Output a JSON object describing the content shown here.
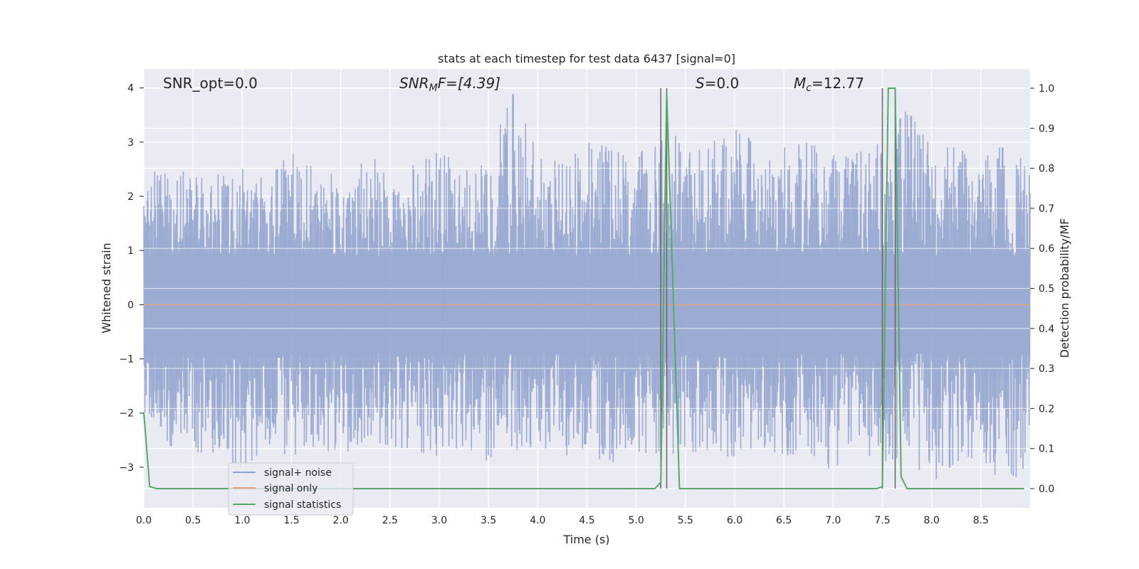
{
  "chart_data": {
    "type": "line",
    "title": "stats at each timestep for test data 6437 [signal=0]",
    "xlabel": "Time (s)",
    "ylabel": "Whitened strain",
    "y2label": "Detection probability/MF",
    "xlim": [
      0.0,
      9.0
    ],
    "ylim": [
      -3.75,
      4.35
    ],
    "y2lim": [
      -0.048,
      1.048
    ],
    "xticks": [
      "0.0",
      "0.5",
      "1.0",
      "1.5",
      "2.0",
      "2.5",
      "3.0",
      "3.5",
      "4.0",
      "4.5",
      "5.0",
      "5.5",
      "6.0",
      "6.5",
      "7.0",
      "7.5",
      "8.0",
      "8.5"
    ],
    "yticks": [
      "4",
      "3",
      "2",
      "1",
      "0",
      "−1",
      "−2",
      "−3"
    ],
    "y2ticks": [
      "1.0",
      "0.9",
      "0.8",
      "0.7",
      "0.6",
      "0.5",
      "0.4",
      "0.3",
      "0.2",
      "0.1",
      "0.0"
    ],
    "grid": true,
    "annotations": {
      "snr_opt": "SNR_opt=0.0",
      "snr_mf_base": "SNR",
      "snr_mf_sub": "M",
      "snr_mf_rest": "F=[4.39]",
      "s_base": "S",
      "s_rest": "=0.0",
      "mc_base": "M",
      "mc_sub": "c",
      "mc_rest": "=12.77"
    },
    "legend": {
      "placement": "lower-left",
      "entries": [
        {
          "label": "signal+ noise",
          "color": "#8da0cb"
        },
        {
          "label": "signal only",
          "color": "#e3a07a"
        },
        {
          "label": "signal statistics",
          "color": "#55a868"
        }
      ]
    },
    "series": [
      {
        "name": "signal+ noise",
        "color": "#8da0cb",
        "axis": "left",
        "envelope_x": [
          0.0,
          0.25,
          0.5,
          0.75,
          1.0,
          1.25,
          1.5,
          1.75,
          2.0,
          2.25,
          2.5,
          2.75,
          3.0,
          3.25,
          3.5,
          3.75,
          4.0,
          4.25,
          4.5,
          4.75,
          5.0,
          5.25,
          5.5,
          5.75,
          6.0,
          6.25,
          6.5,
          6.75,
          7.0,
          7.25,
          7.5,
          7.75,
          8.0,
          8.25,
          8.5,
          8.75,
          9.0
        ],
        "envelope_max": [
          2.5,
          2.4,
          2.5,
          2.5,
          2.5,
          2.4,
          2.8,
          2.5,
          2.4,
          2.8,
          2.5,
          2.6,
          2.9,
          2.6,
          2.8,
          3.9,
          2.8,
          2.6,
          3.0,
          2.9,
          2.6,
          3.6,
          2.8,
          2.9,
          3.6,
          2.7,
          2.9,
          3.0,
          2.9,
          2.8,
          3.0,
          3.6,
          2.9,
          2.9,
          2.9,
          2.9,
          2.6
        ],
        "envelope_min": [
          -2.3,
          -2.6,
          -2.7,
          -2.8,
          -3.0,
          -2.7,
          -2.8,
          -2.6,
          -2.8,
          -2.5,
          -2.6,
          -2.7,
          -2.8,
          -2.6,
          -2.9,
          -2.7,
          -2.6,
          -2.8,
          -2.7,
          -3.0,
          -2.7,
          -2.8,
          -2.7,
          -2.8,
          -2.8,
          -2.6,
          -2.8,
          -2.7,
          -3.1,
          -2.8,
          -2.9,
          -2.8,
          -3.3,
          -2.9,
          -2.8,
          -3.4,
          -2.9
        ]
      },
      {
        "name": "signal only",
        "color": "#e3a07a",
        "axis": "left",
        "x": [
          0.0,
          9.0
        ],
        "y": [
          0.0,
          0.0
        ]
      },
      {
        "name": "signal statistics",
        "color": "#55a868",
        "axis": "right",
        "x": [
          0.0,
          0.06,
          0.13,
          5.19,
          5.25,
          5.31,
          5.44,
          7.44,
          7.5,
          7.56,
          7.63,
          7.69,
          7.75,
          8.94
        ],
        "y": [
          0.19,
          0.005,
          0.0,
          0.0,
          0.016,
          0.99,
          0.0,
          0.0,
          0.005,
          1.0,
          1.0,
          0.03,
          0.0,
          0.0
        ]
      }
    ],
    "vlines": {
      "color": "#666666",
      "x": [
        5.25,
        5.31,
        7.5,
        7.63
      ],
      "y_range": [
        0.0,
        1.0
      ]
    }
  }
}
